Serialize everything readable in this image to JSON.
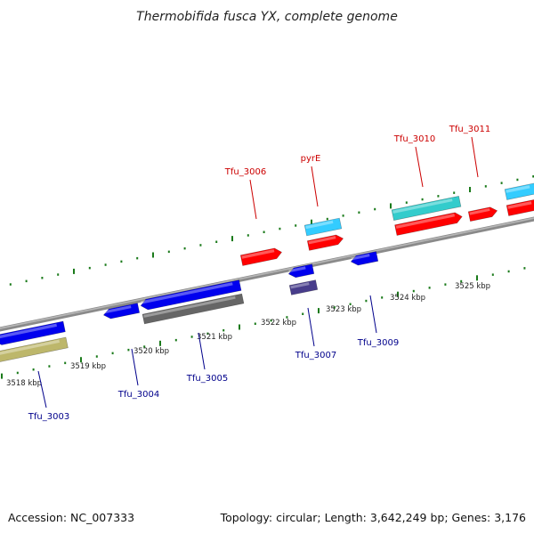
{
  "title": "Thermobifida fusca YX, complete genome",
  "footer": {
    "accession": "Accession: NC_007333",
    "summary": "Topology: circular; Length: 3,642,249 bp; Genes: 3,176"
  },
  "colors": {
    "backbone": "#888888",
    "tick": "#1a7a1a",
    "label_upper": "#cc0000",
    "label_lower": "#00008b"
  },
  "scale_labels": [
    "3518 kbp",
    "3519 kbp",
    "3520 kbp",
    "3521 kbp",
    "3522 kbp",
    "3523 kbp",
    "3524 kbp",
    "3525 kbp"
  ],
  "genes_upper": [
    {
      "id": "Tfu_3006",
      "color": "#ff0000",
      "labeled": true
    },
    {
      "id": "pyrE",
      "color": "#ff0000",
      "labeled": true
    },
    {
      "id": "pyrE-partner",
      "color": "#33ccff",
      "labeled": false
    },
    {
      "id": "Tfu_3010",
      "color": "#ff0000",
      "labeled": true
    },
    {
      "id": "Tfu_3010-partner",
      "color": "#33cccc",
      "labeled": false
    },
    {
      "id": "Tfu_3011",
      "color": "#ff0000",
      "labeled": true
    },
    {
      "id": "edge-red",
      "color": "#ff0000",
      "labeled": false
    },
    {
      "id": "edge-cyan",
      "color": "#33ccff",
      "labeled": false
    }
  ],
  "genes_lower": [
    {
      "id": "Tfu_3003",
      "color": "#0000ee",
      "labeled": true
    },
    {
      "id": "Tfu_3003-partner",
      "color": "#bdb76b",
      "labeled": false
    },
    {
      "id": "Tfu_3004",
      "color": "#0000ee",
      "labeled": true
    },
    {
      "id": "Tfu_3005",
      "color": "#0000ee",
      "labeled": true
    },
    {
      "id": "Tfu_3005-partner",
      "color": "#666666",
      "labeled": false
    },
    {
      "id": "Tfu_3007",
      "color": "#0000ee",
      "labeled": true
    },
    {
      "id": "Tfu_3007-partner",
      "color": "#483d8b",
      "labeled": false
    },
    {
      "id": "Tfu_3009",
      "color": "#0000ee",
      "labeled": true
    }
  ]
}
